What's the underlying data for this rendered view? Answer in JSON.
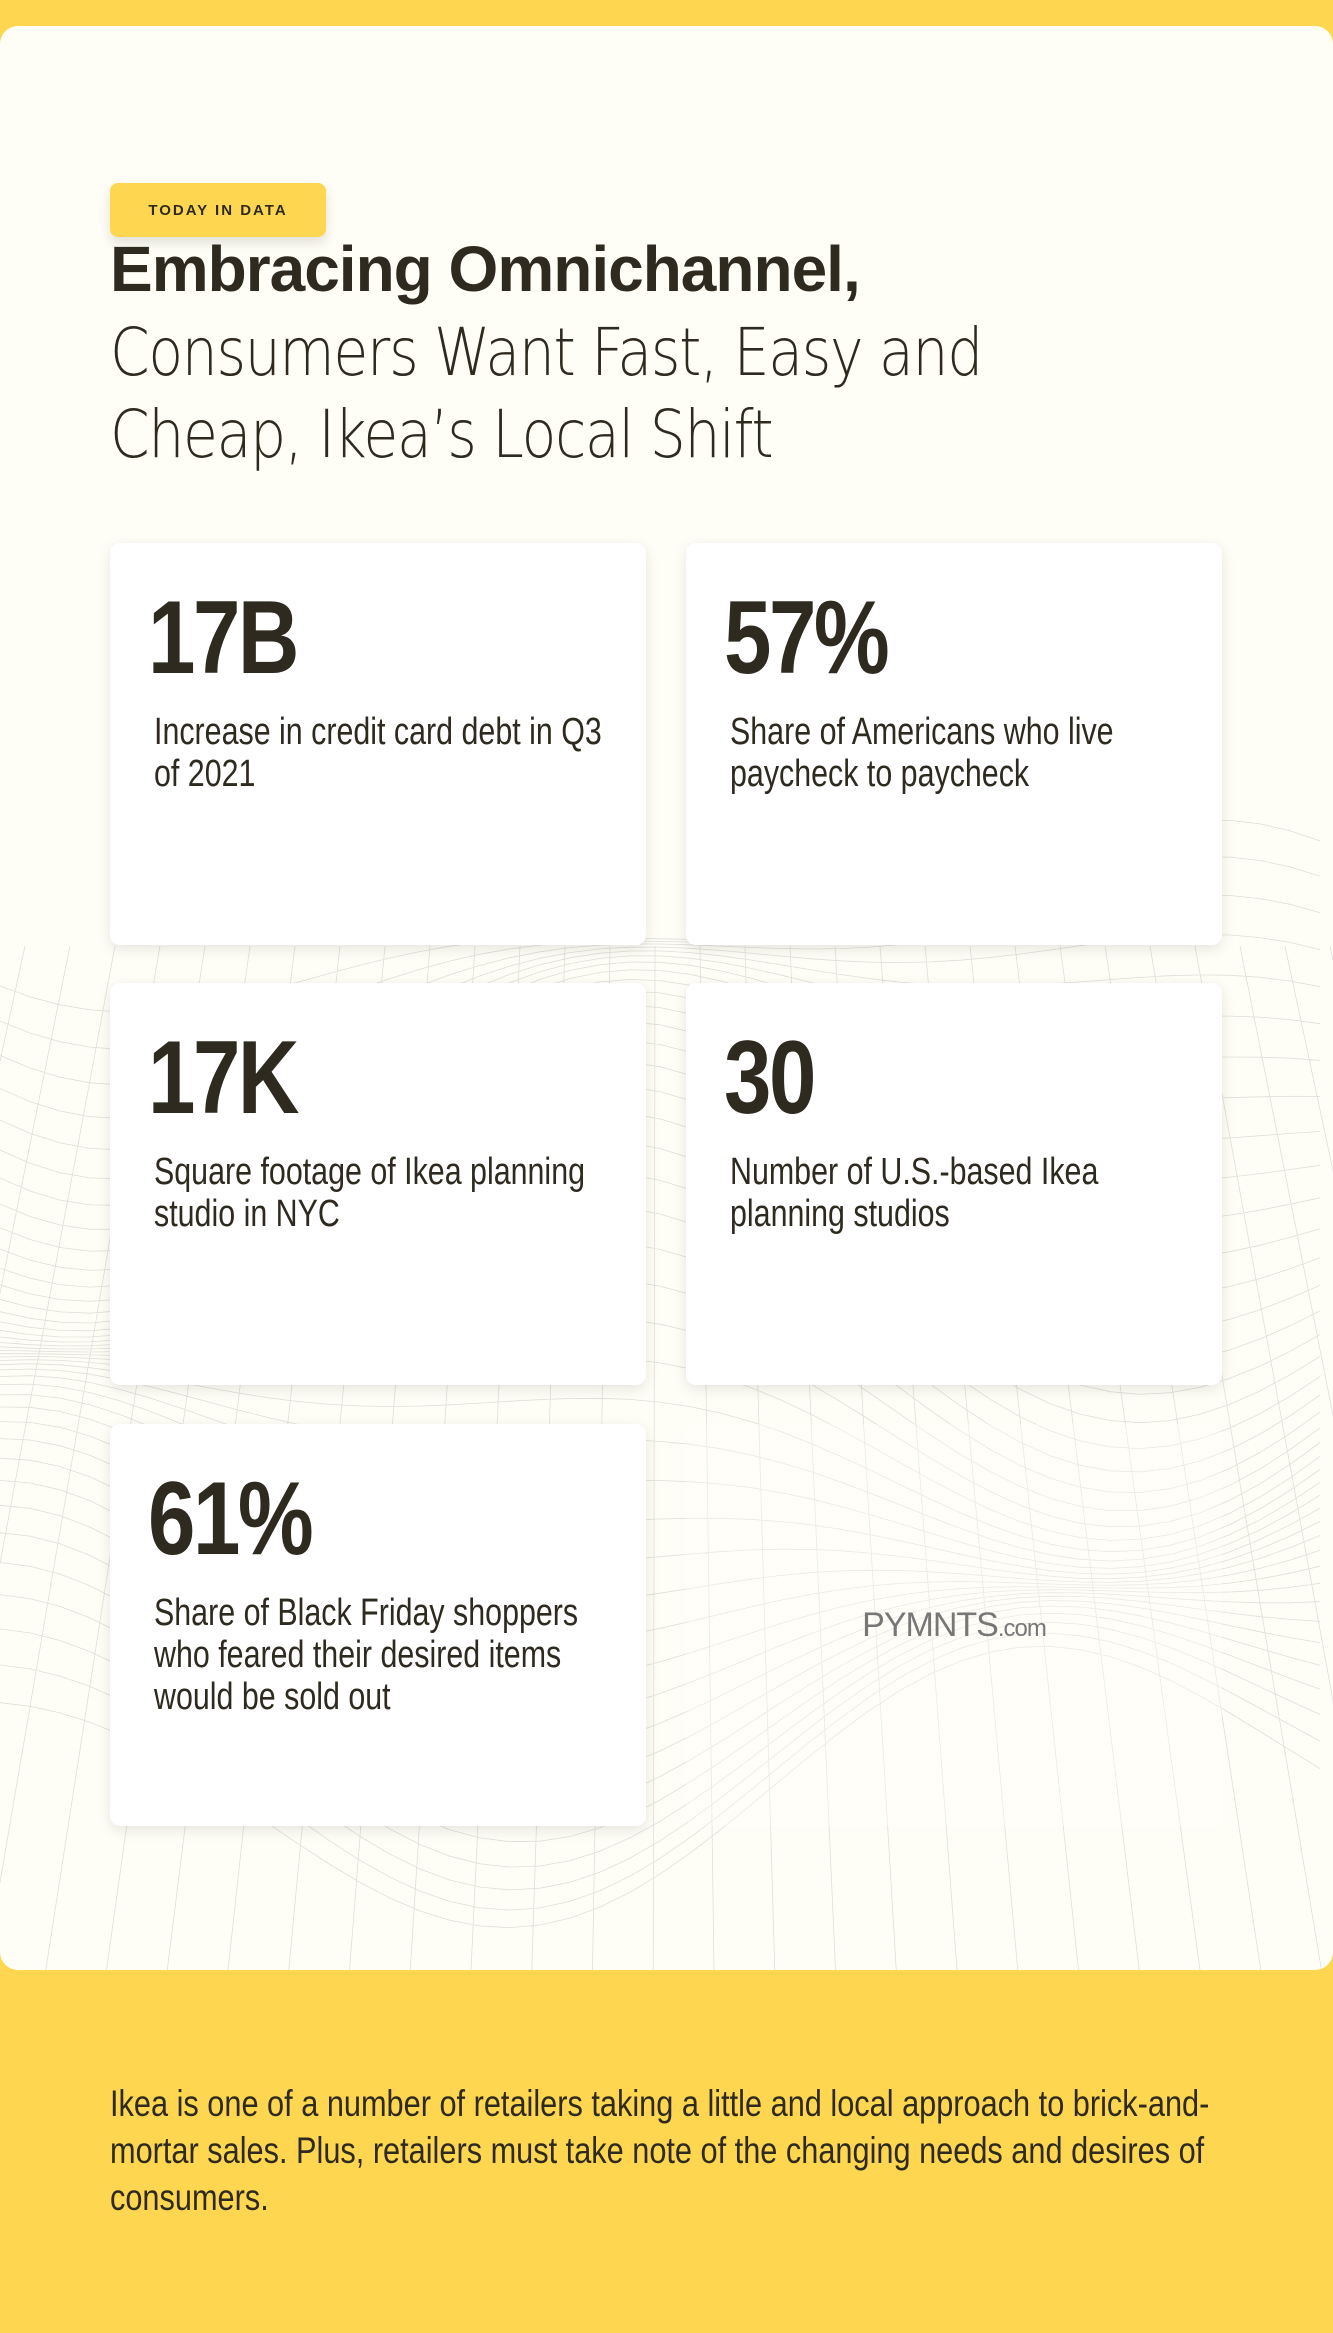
{
  "badge": "TODAY IN DATA",
  "headline": {
    "bold": "Embracing Omnichannel,",
    "light_lines": [
      "Consumers Want Fast, Easy and",
      "Cheap, Ikea’s Local Shift"
    ]
  },
  "stats": [
    {
      "value": "17B",
      "description": "Increase in credit card debt in Q3 of 2021"
    },
    {
      "value": "57%",
      "description": "Share of Americans who live paycheck to paycheck"
    },
    {
      "value": "17K",
      "description": "Square footage of Ikea planning studio in NYC"
    },
    {
      "value": "30",
      "description": "Number of U.S.-based Ikea planning studios"
    },
    {
      "value": "61%",
      "description": "Share of Black Friday shoppers who feared their desired items would be sold out"
    }
  ],
  "logo": {
    "main": "PYMNTS",
    "suffix": ".com"
  },
  "footer_text": "Ikea is one of a number of retailers taking a little and local approach to brick-and-mortar sales. Plus, retailers must take note of the changing needs and desires of consumers.",
  "colors": {
    "accent": "#ffd64f",
    "text": "#2e2a1f",
    "panel": "#fffef6"
  }
}
